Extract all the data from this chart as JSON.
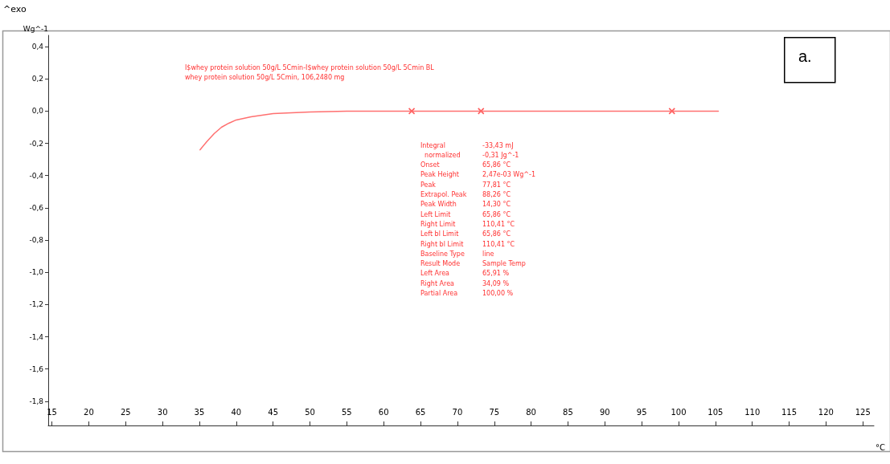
{
  "chart_data": {
    "type": "line",
    "xlabel": "°C",
    "ylabel": "Wg^-1",
    "x": [
      35.1,
      36,
      37,
      38,
      39,
      40,
      42,
      45,
      50,
      55,
      60,
      70,
      80,
      90,
      100,
      105.4
    ],
    "series": [
      {
        "color": "#ff7070",
        "values": [
          -0.24,
          -0.19,
          -0.14,
          -0.1,
          -0.075,
          -0.055,
          -0.035,
          -0.015,
          -0.005,
          0,
          0,
          0,
          0,
          0,
          0,
          0
        ]
      },
      {
        "type": "scatter",
        "marker": "cross",
        "color": "#ff3030",
        "x": [
          63.8,
          73.2,
          99.1
        ],
        "values": [
          0,
          0,
          0
        ]
      }
    ],
    "xlim": [
      14.5,
      126.5
    ],
    "xticks": [
      15,
      20,
      25,
      30,
      35,
      40,
      45,
      50,
      55,
      60,
      65,
      70,
      75,
      80,
      85,
      90,
      95,
      100,
      105,
      110,
      115,
      120,
      125
    ],
    "ylim": [
      -1.95,
      0.47
    ],
    "yticks": [
      {
        "value": 0.4,
        "label": "0,4"
      },
      {
        "value": 0.2,
        "label": "0,2"
      },
      {
        "value": 0,
        "label": "0,0"
      },
      {
        "value": -0.2,
        "label": "-0,2"
      },
      {
        "value": -0.4,
        "label": "-0,4"
      },
      {
        "value": -0.6,
        "label": "-0,6"
      },
      {
        "value": -0.8,
        "label": "-0,8"
      },
      {
        "value": -1,
        "label": "-1,0"
      },
      {
        "value": -1.2,
        "label": "-1,2"
      },
      {
        "value": -1.4,
        "label": "-1,4"
      },
      {
        "value": -1.6,
        "label": "-1,6"
      },
      {
        "value": -1.8,
        "label": "-1,8"
      }
    ],
    "grid": false,
    "line_style": "solid",
    "marker": "none",
    "annotations": [
      "^exo",
      "a.",
      "I$whey protein solution 50g/L 5Cmin-I$whey protein solution 50g/L 5Cmin BL",
      "whey protein solution 50g/L 5Cmin, 106,2480 mg",
      [
        "Integral",
        "-33,43 mJ"
      ],
      [
        "  normalized",
        "-0,31 Jg^-1"
      ],
      [
        "Onset",
        "65,86 °C"
      ],
      [
        "Peak Height",
        "2,47e-03 Wg^-1"
      ],
      [
        "Peak",
        "77,81 °C"
      ],
      [
        "Extrapol. Peak",
        "88,26 °C"
      ],
      [
        "Peak Width",
        "14,30 °C"
      ],
      [
        "Left Limit",
        "65,86 °C"
      ],
      [
        "Right Limit",
        "110,41 °C"
      ],
      [
        "Left bl Limit",
        "65,86 °C"
      ],
      [
        "Right bl Limit",
        "110,41 °C"
      ],
      [
        "Baseline Type",
        "line"
      ],
      [
        "Result Mode",
        "Sample Temp"
      ],
      [
        "Left Area",
        "65,91 %"
      ],
      [
        "Right Area",
        "34,09 %"
      ],
      [
        "Partial Area",
        "100,00 %"
      ]
    ]
  }
}
